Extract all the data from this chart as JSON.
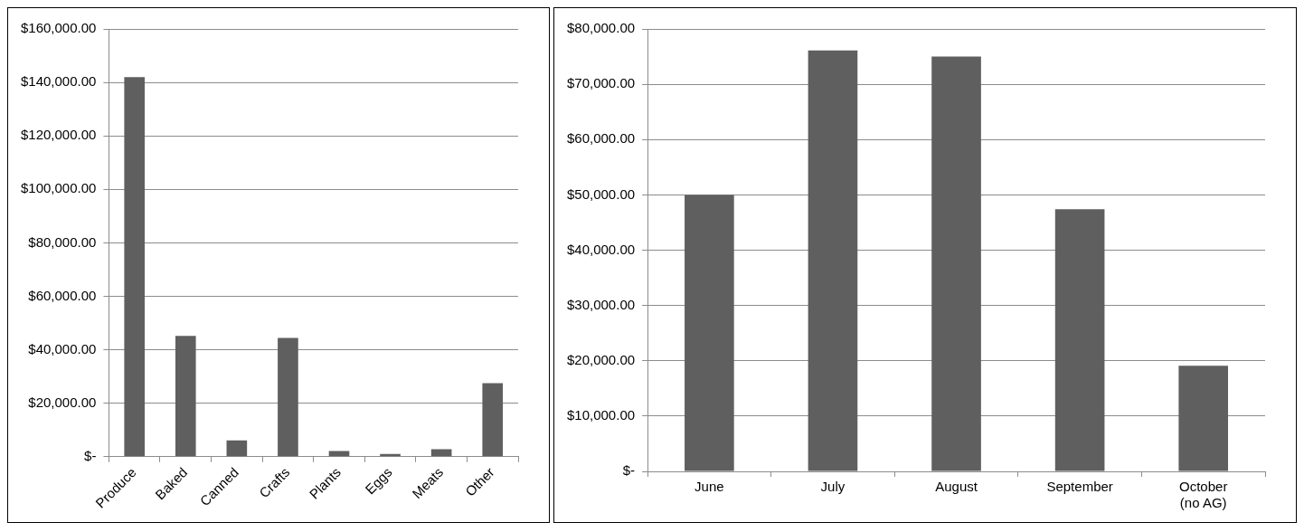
{
  "chart_data": [
    {
      "type": "bar",
      "categories": [
        "Produce",
        "Baked",
        "Canned",
        "Crafts",
        "Plants",
        "Eggs",
        "Meats",
        "Other"
      ],
      "series": [
        {
          "color": "#5f5f5f",
          "values": [
            142000,
            45200,
            6100,
            44400,
            2100,
            1000,
            2800,
            27500
          ]
        }
      ],
      "ylim": [
        0,
        160000
      ],
      "yticks": [
        {
          "value": 0,
          "label": "$-"
        },
        {
          "value": 20000,
          "label": "$20,000.00"
        },
        {
          "value": 40000,
          "label": "$40,000.00"
        },
        {
          "value": 60000,
          "label": "$60,000.00"
        },
        {
          "value": 80000,
          "label": "$80,000.00"
        },
        {
          "value": 100000,
          "label": "$100,000.00"
        },
        {
          "value": 120000,
          "label": "$120,000.00"
        },
        {
          "value": 140000,
          "label": "$140,000.00"
        },
        {
          "value": 160000,
          "label": "$160,000.00"
        }
      ],
      "grid": "y",
      "legend": false
    },
    {
      "type": "bar",
      "categories": [
        "June",
        "July",
        "August",
        "September",
        "October (no AG)"
      ],
      "series": [
        {
          "color": "#5f5f5f",
          "values": [
            50000,
            76100,
            75000,
            47400,
            19100
          ]
        }
      ],
      "ylim": [
        0,
        80000
      ],
      "yticks": [
        {
          "value": 0,
          "label": "$-"
        },
        {
          "value": 10000,
          "label": "$10,000.00"
        },
        {
          "value": 20000,
          "label": "$20,000.00"
        },
        {
          "value": 30000,
          "label": "$30,000.00"
        },
        {
          "value": 40000,
          "label": "$40,000.00"
        },
        {
          "value": 50000,
          "label": "$50,000.00"
        },
        {
          "value": 60000,
          "label": "$60,000.00"
        },
        {
          "value": 70000,
          "label": "$70,000.00"
        },
        {
          "value": 80000,
          "label": "$80,000.00"
        }
      ],
      "grid": "y",
      "legend": false
    }
  ]
}
